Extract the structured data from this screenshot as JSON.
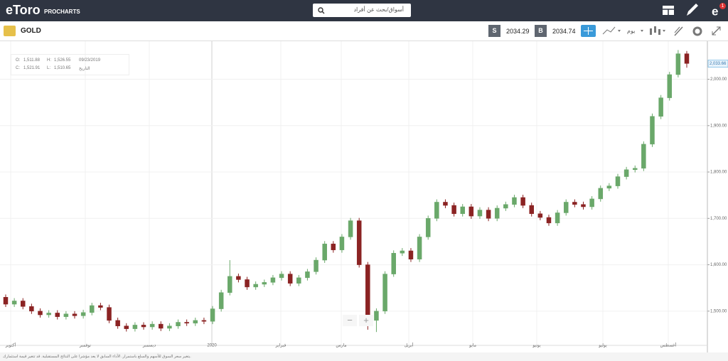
{
  "header": {
    "logo": "eToro",
    "logo_sub": "PROCHARTS",
    "search_placeholder": "أسواق/بحث عن أفراد",
    "badge": "1"
  },
  "toolbar": {
    "instrument": "GOLD",
    "sell_label": "S",
    "sell_price": "2034.29",
    "buy_label": "B",
    "buy_price": "2034.74",
    "period": "يوم"
  },
  "info": {
    "o_label": "O:",
    "o": "1,511.88",
    "h_label": "H:",
    "h": "1,526.55",
    "date": "09/23/2019",
    "c_label": "C:",
    "c": "1,521.91",
    "l_label": "L:",
    "l": "1,510.65",
    "date_label": "التاريخ"
  },
  "zoom": {
    "minus": "−",
    "plus": "+"
  },
  "footer": {
    "disclaimer": "يتغير سعر السوق للأسهم والسلع باستمرار. الأداء السابق لا يعد مؤشرا على النتائج المستقبلية. قد تتغير قيمة استثمارك."
  },
  "chart_data": {
    "type": "candlestick",
    "x_labels": [
      "أكتوبر",
      "نوفمبر",
      "ديسمبر",
      "2020",
      "فبراير",
      "مارس",
      "أبريل",
      "مايو",
      "يونيو",
      "يوليو",
      "أغسطس"
    ],
    "open": [
      1530,
      1515,
      1522,
      1510,
      1500,
      1492,
      1496,
      1488,
      1494,
      1490,
      1497,
      1512,
      1508,
      1480,
      1468,
      1462,
      1470,
      1466,
      1472,
      1463,
      1468,
      1476,
      1474,
      1480,
      1478,
      1505,
      1540,
      1575,
      1568,
      1552,
      1558,
      1562,
      1572,
      1580,
      1560,
      1572,
      1585,
      1610,
      1645,
      1632,
      1660,
      1695,
      1600,
      1480,
      1500,
      1580,
      1625,
      1630,
      1612,
      1660,
      1700,
      1735,
      1728,
      1710,
      1725,
      1705,
      1718,
      1700,
      1722,
      1730,
      1745,
      1728,
      1710,
      1702,
      1690,
      1712,
      1735,
      1730,
      1725,
      1742,
      1765,
      1770,
      1790,
      1805,
      1808,
      1860,
      1920,
      1960,
      2010,
      2055
    ],
    "high": [
      1536,
      1528,
      1528,
      1516,
      1506,
      1502,
      1502,
      1500,
      1500,
      1503,
      1518,
      1518,
      1514,
      1486,
      1474,
      1476,
      1476,
      1478,
      1478,
      1474,
      1482,
      1482,
      1486,
      1486,
      1511,
      1546,
      1610,
      1581,
      1574,
      1564,
      1568,
      1578,
      1586,
      1586,
      1578,
      1591,
      1616,
      1651,
      1651,
      1666,
      1701,
      1701,
      1606,
      1506,
      1586,
      1631,
      1636,
      1636,
      1666,
      1706,
      1741,
      1741,
      1734,
      1731,
      1731,
      1724,
      1724,
      1728,
      1736,
      1751,
      1751,
      1734,
      1716,
      1708,
      1718,
      1741,
      1741,
      1736,
      1748,
      1771,
      1776,
      1796,
      1811,
      1814,
      1866,
      1926,
      1966,
      2016,
      2063,
      2061
    ],
    "low": [
      1509,
      1509,
      1504,
      1494,
      1486,
      1486,
      1482,
      1482,
      1484,
      1484,
      1491,
      1502,
      1474,
      1462,
      1456,
      1456,
      1460,
      1460,
      1457,
      1457,
      1462,
      1468,
      1468,
      1472,
      1472,
      1499,
      1534,
      1562,
      1546,
      1546,
      1552,
      1556,
      1566,
      1554,
      1554,
      1566,
      1579,
      1604,
      1626,
      1626,
      1654,
      1594,
      1460,
      1455,
      1494,
      1574,
      1619,
      1606,
      1606,
      1654,
      1694,
      1722,
      1704,
      1704,
      1699,
      1699,
      1694,
      1694,
      1716,
      1724,
      1722,
      1704,
      1696,
      1684,
      1684,
      1706,
      1724,
      1719,
      1719,
      1736,
      1759,
      1764,
      1784,
      1799,
      1802,
      1854,
      1914,
      1954,
      2004,
      2025
    ],
    "close": [
      1515,
      1522,
      1510,
      1500,
      1492,
      1496,
      1488,
      1494,
      1490,
      1497,
      1512,
      1508,
      1480,
      1468,
      1462,
      1470,
      1466,
      1472,
      1463,
      1468,
      1476,
      1474,
      1480,
      1478,
      1505,
      1540,
      1575,
      1568,
      1552,
      1558,
      1562,
      1572,
      1580,
      1560,
      1572,
      1585,
      1610,
      1645,
      1632,
      1660,
      1695,
      1600,
      1480,
      1500,
      1580,
      1625,
      1630,
      1612,
      1660,
      1700,
      1735,
      1728,
      1710,
      1725,
      1705,
      1718,
      1700,
      1722,
      1730,
      1745,
      1728,
      1710,
      1702,
      1690,
      1712,
      1735,
      1730,
      1725,
      1742,
      1765,
      1770,
      1790,
      1805,
      1808,
      1860,
      1920,
      1960,
      2010,
      2055,
      2034
    ],
    "up_color": "#6aa86a",
    "down_color": "#8b2323",
    "ylim": [
      1417,
      2082
    ],
    "yticks": [
      {
        "value": 1500,
        "label": "1,500.00"
      },
      {
        "value": 1600,
        "label": "1,600.00"
      },
      {
        "value": 1700,
        "label": "1,700.00"
      },
      {
        "value": 1800,
        "label": "1,800.00"
      },
      {
        "value": 1900,
        "label": "1,900.00"
      },
      {
        "value": 2000,
        "label": "2,000.00"
      }
    ],
    "last_price": {
      "value": 2033.66,
      "label": "2,033.66"
    },
    "grid": true
  }
}
